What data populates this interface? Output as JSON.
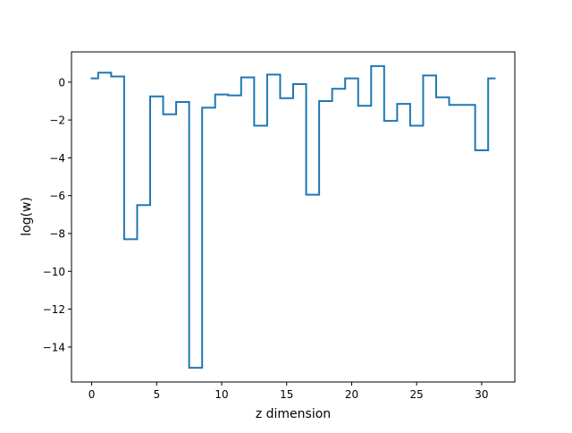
{
  "chart_data": {
    "type": "line",
    "step": "mid",
    "title": "",
    "xlabel": "z dimension",
    "ylabel": "log(w)",
    "xlim": [
      -1.55,
      32.55
    ],
    "ylim": [
      -15.85,
      1.6
    ],
    "xticks": [
      0,
      5,
      10,
      15,
      20,
      25,
      30
    ],
    "yticks": [
      0,
      -2,
      -4,
      -6,
      -8,
      -10,
      -12,
      -14
    ],
    "legend": "none",
    "grid": false,
    "series": [
      {
        "color": "#1f77b4",
        "x": [
          0,
          1,
          2,
          3,
          4,
          5,
          6,
          7,
          8,
          9,
          10,
          11,
          12,
          13,
          14,
          15,
          16,
          17,
          18,
          19,
          20,
          21,
          22,
          23,
          24,
          25,
          26,
          27,
          28,
          29,
          30,
          31
        ],
        "y": [
          0.2,
          0.5,
          0.3,
          -8.3,
          -6.5,
          -0.75,
          -1.7,
          -1.05,
          -15.1,
          -1.35,
          -0.65,
          -0.7,
          0.25,
          -2.3,
          0.4,
          -0.85,
          -0.1,
          -5.95,
          -1.0,
          -0.35,
          0.2,
          -1.25,
          0.85,
          -2.05,
          -1.15,
          -2.3,
          0.35,
          -0.8,
          -1.2,
          -1.2,
          -3.6,
          0.2
        ]
      }
    ]
  }
}
